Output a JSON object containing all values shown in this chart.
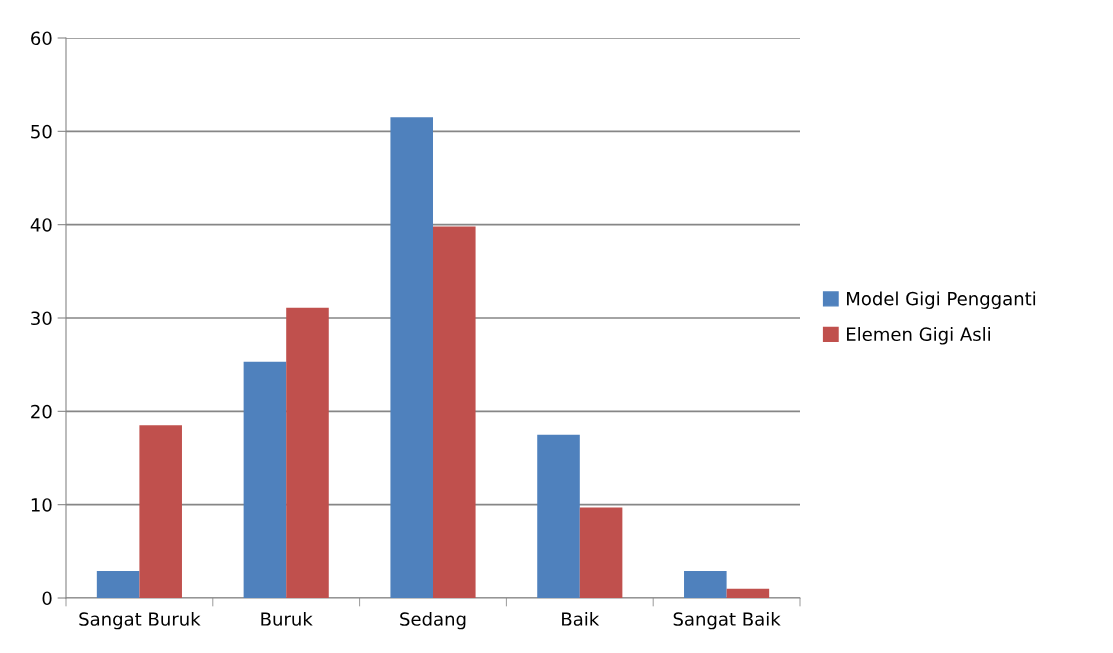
{
  "chart_data": {
    "type": "bar",
    "categories": [
      "Sangat Buruk",
      "Buruk",
      "Sedang",
      "Baik",
      "Sangat Baik"
    ],
    "series": [
      {
        "name": "Model Gigi Pengganti",
        "color": "#4f81bd",
        "values": [
          2.9,
          25.3,
          51.5,
          17.5,
          2.9
        ]
      },
      {
        "name": "Elemen Gigi Asli",
        "color": "#c0504d",
        "values": [
          18.5,
          31.1,
          39.8,
          9.7,
          1.0
        ]
      }
    ],
    "ylim": [
      0,
      60
    ],
    "yticks": [
      0,
      10,
      20,
      30,
      40,
      50,
      60
    ],
    "grid": "y",
    "legend": "right"
  }
}
